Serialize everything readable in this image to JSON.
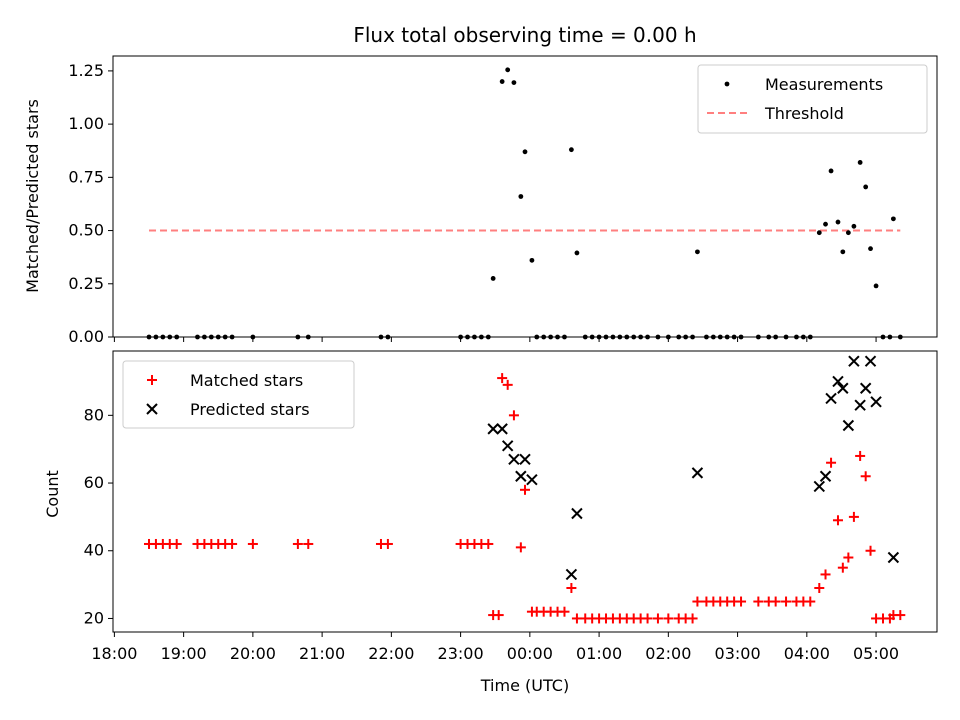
{
  "chart_data": [
    {
      "type": "scatter",
      "title": "Flux total observing time = 0.00 h",
      "ylabel": "Matched/Predicted stars",
      "xlabel": "",
      "ylim": [
        0,
        1.32
      ],
      "yticks": [
        0.0,
        0.25,
        0.5,
        0.75,
        1.0,
        1.25
      ],
      "yticklabels": [
        "0.00",
        "0.25",
        "0.50",
        "0.75",
        "1.00",
        "1.25"
      ],
      "legend_placement": "top-right",
      "series": [
        {
          "name": "Measurements",
          "marker": "dot",
          "color": "#000000",
          "points": [
            [
              18.5,
              0
            ],
            [
              18.6,
              0
            ],
            [
              18.7,
              0
            ],
            [
              18.8,
              0
            ],
            [
              18.9,
              0
            ],
            [
              19.2,
              0
            ],
            [
              19.3,
              0
            ],
            [
              19.4,
              0
            ],
            [
              19.5,
              0
            ],
            [
              19.6,
              0
            ],
            [
              19.7,
              0
            ],
            [
              20.0,
              0
            ],
            [
              20.65,
              0
            ],
            [
              20.8,
              0
            ],
            [
              21.85,
              0
            ],
            [
              21.95,
              0
            ],
            [
              23.0,
              0
            ],
            [
              23.1,
              0
            ],
            [
              23.2,
              0
            ],
            [
              23.3,
              0
            ],
            [
              23.4,
              0
            ],
            [
              23.47,
              0.275
            ],
            [
              23.6,
              1.2
            ],
            [
              23.68,
              1.255
            ],
            [
              23.77,
              1.195
            ],
            [
              23.87,
              0.66
            ],
            [
              23.93,
              0.87
            ],
            [
              24.03,
              0.36
            ],
            [
              24.1,
              0
            ],
            [
              24.2,
              0
            ],
            [
              24.3,
              0
            ],
            [
              24.4,
              0
            ],
            [
              24.5,
              0
            ],
            [
              24.6,
              0.88
            ],
            [
              24.68,
              0.395
            ],
            [
              24.8,
              0
            ],
            [
              24.9,
              0
            ],
            [
              25.0,
              0
            ],
            [
              25.1,
              0
            ],
            [
              25.2,
              0
            ],
            [
              25.3,
              0
            ],
            [
              25.4,
              0
            ],
            [
              25.5,
              0
            ],
            [
              25.6,
              0
            ],
            [
              25.7,
              0
            ],
            [
              25.85,
              0
            ],
            [
              26.0,
              0
            ],
            [
              26.15,
              0
            ],
            [
              26.25,
              0
            ],
            [
              26.35,
              0
            ],
            [
              26.42,
              0.4
            ],
            [
              26.55,
              0
            ],
            [
              26.65,
              0
            ],
            [
              26.75,
              0
            ],
            [
              26.85,
              0
            ],
            [
              26.95,
              0
            ],
            [
              27.05,
              0
            ],
            [
              27.3,
              0
            ],
            [
              27.45,
              0
            ],
            [
              27.55,
              0
            ],
            [
              27.7,
              0
            ],
            [
              27.85,
              0
            ],
            [
              27.95,
              0
            ],
            [
              28.05,
              0
            ],
            [
              28.18,
              0.49
            ],
            [
              28.27,
              0.53
            ],
            [
              28.35,
              0.78
            ],
            [
              28.45,
              0.54
            ],
            [
              28.52,
              0.4
            ],
            [
              28.6,
              0.49
            ],
            [
              28.68,
              0.52
            ],
            [
              28.77,
              0.82
            ],
            [
              28.85,
              0.705
            ],
            [
              28.92,
              0.415
            ],
            [
              29.0,
              0.24
            ],
            [
              29.1,
              0
            ],
            [
              29.2,
              0
            ],
            [
              29.25,
              0.555
            ],
            [
              29.35,
              0
            ]
          ]
        },
        {
          "name": "Threshold",
          "style": "dashed",
          "color": "#ff7f7f",
          "x": [
            18.5,
            29.35
          ],
          "y": [
            0.5,
            0.5
          ]
        }
      ]
    },
    {
      "type": "scatter",
      "title": "",
      "xlabel": "Time (UTC)",
      "ylabel": "Count",
      "xlim": [
        17.98,
        29.88
      ],
      "ylim": [
        16,
        99
      ],
      "xticks": [
        18,
        19,
        20,
        21,
        22,
        23,
        24,
        25,
        26,
        27,
        28,
        29
      ],
      "xticklabels": [
        "18:00",
        "19:00",
        "20:00",
        "21:00",
        "22:00",
        "23:00",
        "00:00",
        "01:00",
        "02:00",
        "03:00",
        "04:00",
        "05:00"
      ],
      "yticks": [
        20,
        40,
        60,
        80
      ],
      "yticklabels": [
        "20",
        "40",
        "60",
        "80"
      ],
      "legend_placement": "top-left",
      "series": [
        {
          "name": "Matched stars",
          "marker": "plus",
          "color": "#ff0000",
          "points": [
            [
              18.5,
              42
            ],
            [
              18.6,
              42
            ],
            [
              18.7,
              42
            ],
            [
              18.8,
              42
            ],
            [
              18.9,
              42
            ],
            [
              19.2,
              42
            ],
            [
              19.3,
              42
            ],
            [
              19.4,
              42
            ],
            [
              19.5,
              42
            ],
            [
              19.6,
              42
            ],
            [
              19.7,
              42
            ],
            [
              20.0,
              42
            ],
            [
              20.65,
              42
            ],
            [
              20.8,
              42
            ],
            [
              21.85,
              42
            ],
            [
              21.95,
              42
            ],
            [
              23.0,
              42
            ],
            [
              23.1,
              42
            ],
            [
              23.2,
              42
            ],
            [
              23.3,
              42
            ],
            [
              23.4,
              42
            ],
            [
              23.47,
              21
            ],
            [
              23.55,
              21
            ],
            [
              23.6,
              91
            ],
            [
              23.68,
              89
            ],
            [
              23.77,
              80
            ],
            [
              23.87,
              41
            ],
            [
              23.93,
              58
            ],
            [
              24.03,
              22
            ],
            [
              24.1,
              22
            ],
            [
              24.2,
              22
            ],
            [
              24.3,
              22
            ],
            [
              24.4,
              22
            ],
            [
              24.5,
              22
            ],
            [
              24.6,
              29
            ],
            [
              24.68,
              20
            ],
            [
              24.8,
              20
            ],
            [
              24.9,
              20
            ],
            [
              25.0,
              20
            ],
            [
              25.1,
              20
            ],
            [
              25.2,
              20
            ],
            [
              25.3,
              20
            ],
            [
              25.4,
              20
            ],
            [
              25.5,
              20
            ],
            [
              25.6,
              20
            ],
            [
              25.7,
              20
            ],
            [
              25.85,
              20
            ],
            [
              26.0,
              20
            ],
            [
              26.15,
              20
            ],
            [
              26.25,
              20
            ],
            [
              26.35,
              20
            ],
            [
              26.42,
              25
            ],
            [
              26.55,
              25
            ],
            [
              26.65,
              25
            ],
            [
              26.75,
              25
            ],
            [
              26.85,
              25
            ],
            [
              26.95,
              25
            ],
            [
              27.05,
              25
            ],
            [
              27.3,
              25
            ],
            [
              27.45,
              25
            ],
            [
              27.55,
              25
            ],
            [
              27.7,
              25
            ],
            [
              27.85,
              25
            ],
            [
              27.95,
              25
            ],
            [
              28.05,
              25
            ],
            [
              28.18,
              29
            ],
            [
              28.27,
              33
            ],
            [
              28.35,
              66
            ],
            [
              28.45,
              49
            ],
            [
              28.52,
              35
            ],
            [
              28.6,
              38
            ],
            [
              28.68,
              50
            ],
            [
              28.77,
              68
            ],
            [
              28.85,
              62
            ],
            [
              28.92,
              40
            ],
            [
              29.0,
              20
            ],
            [
              29.1,
              20
            ],
            [
              29.2,
              20
            ],
            [
              29.25,
              21
            ],
            [
              29.35,
              21
            ]
          ]
        },
        {
          "name": "Predicted stars",
          "marker": "x",
          "color": "#000000",
          "points": [
            [
              23.47,
              76
            ],
            [
              23.6,
              76
            ],
            [
              23.68,
              71
            ],
            [
              23.77,
              67
            ],
            [
              23.87,
              62
            ],
            [
              23.93,
              67
            ],
            [
              24.03,
              61
            ],
            [
              24.6,
              33
            ],
            [
              24.68,
              51
            ],
            [
              26.42,
              63
            ],
            [
              28.18,
              59
            ],
            [
              28.27,
              62
            ],
            [
              28.35,
              85
            ],
            [
              28.45,
              90
            ],
            [
              28.52,
              88
            ],
            [
              28.6,
              77
            ],
            [
              28.68,
              96
            ],
            [
              28.77,
              83
            ],
            [
              28.85,
              88
            ],
            [
              28.92,
              96
            ],
            [
              29.0,
              84
            ],
            [
              29.25,
              38
            ]
          ]
        }
      ]
    }
  ]
}
